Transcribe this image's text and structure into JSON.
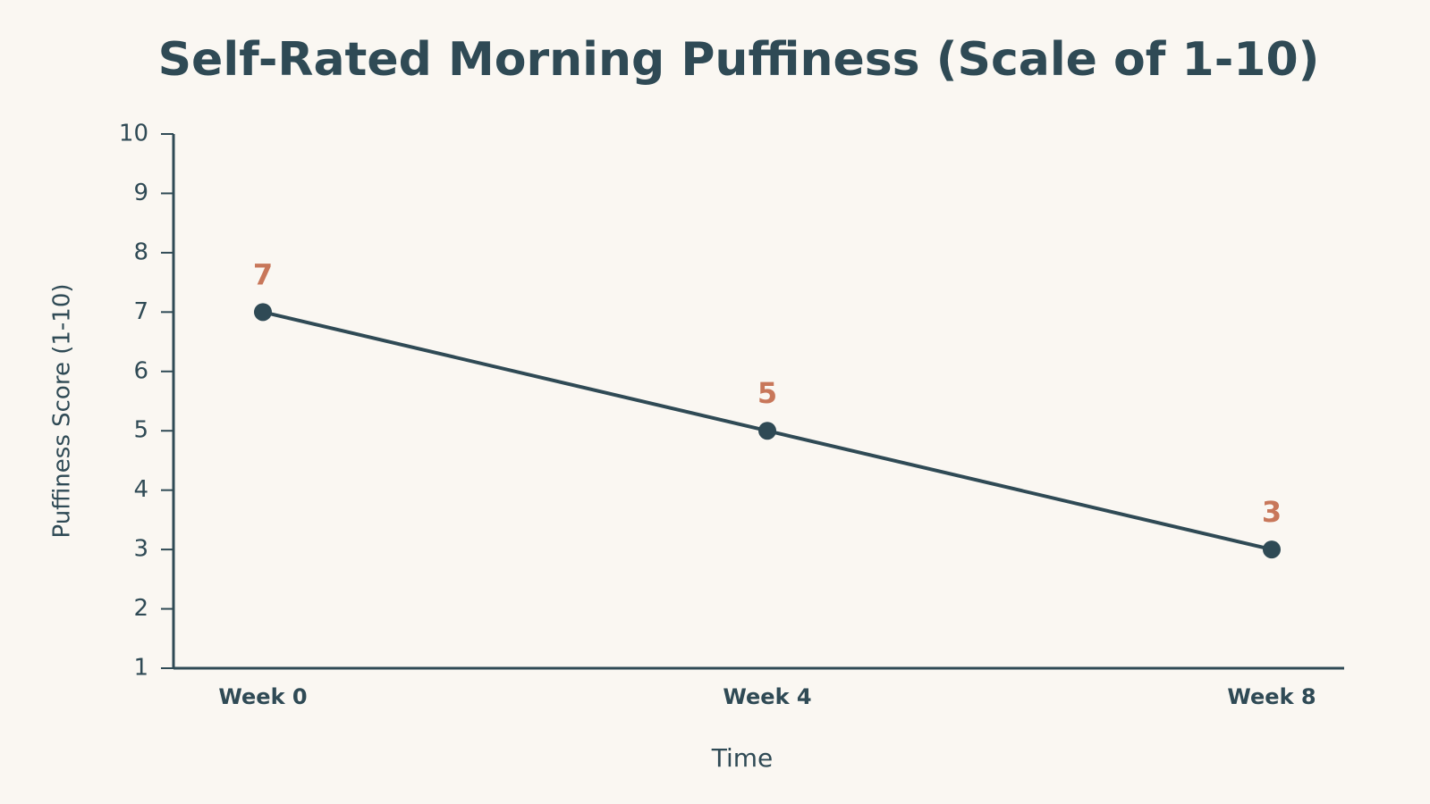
{
  "chart_data": {
    "type": "line",
    "title": "Self-Rated Morning Puffiness (Scale of 1-10)",
    "x_label": "Time",
    "y_label": "Puffiness Score (1-10)",
    "categories": [
      "Week 0",
      "Week 4",
      "Week 8"
    ],
    "series": [
      {
        "name": "Puffiness Score",
        "color": "#2f4a55",
        "values": [
          7,
          5,
          3
        ]
      }
    ],
    "data_label_color": "#c8775a",
    "ylim": [
      1,
      10
    ],
    "yticks": [
      1,
      2,
      3,
      4,
      5,
      6,
      7,
      8,
      9,
      10
    ],
    "grid": false
  }
}
